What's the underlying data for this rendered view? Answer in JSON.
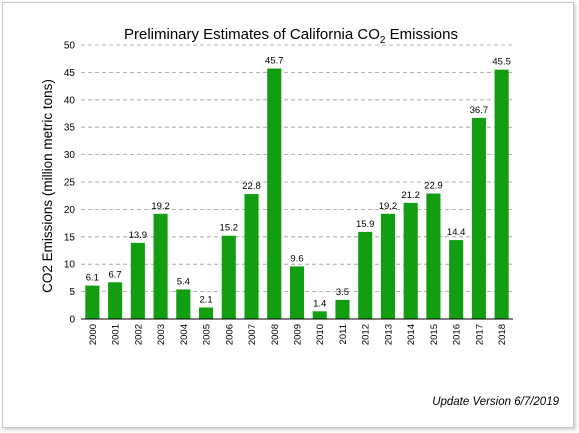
{
  "chart_data": {
    "type": "bar",
    "title_main": "Preliminary Estimates of California CO",
    "title_sub": "2",
    "title_end": " Emissions",
    "ylabel": "CO2 Emissions (million metric tons)",
    "xlabel": "",
    "ylim": [
      0,
      50
    ],
    "yticks": [
      "0",
      "5",
      "10",
      "15",
      "20",
      "25",
      "30",
      "35",
      "40",
      "45",
      "50"
    ],
    "grid": true,
    "bar_color": "#139e12",
    "categories": [
      "2000",
      "2001",
      "2002",
      "2003",
      "2004",
      "2005",
      "2006",
      "2007",
      "2008",
      "2009",
      "2010",
      "2011",
      "2012",
      "2013",
      "2014",
      "2015",
      "2016",
      "2017",
      "2018"
    ],
    "values": [
      6.1,
      6.7,
      13.9,
      19.2,
      5.4,
      2.1,
      15.2,
      22.8,
      45.7,
      9.6,
      1.4,
      3.5,
      15.9,
      19.2,
      21.2,
      22.9,
      14.4,
      36.7,
      45.5
    ],
    "value_labels": [
      "6.1",
      "6.7",
      "13.9",
      "19.2",
      "5.4",
      "2.1",
      "15.2",
      "22.8",
      "45.7",
      "9.6",
      "1.4",
      "3.5",
      "15.9",
      "19.2",
      "21.2",
      "22.9",
      "14.4",
      "36.7",
      "45.5"
    ]
  },
  "footnote": "Update Version 6/7/2019"
}
